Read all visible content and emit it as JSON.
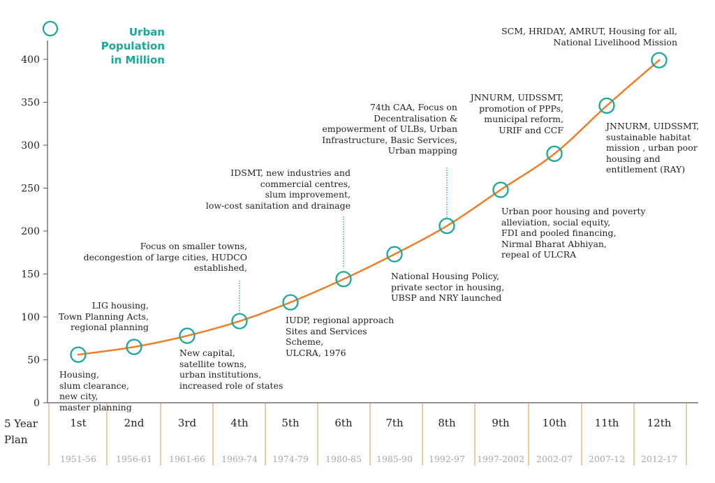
{
  "colors": {
    "accent": "#1aa89a",
    "curve": "#f07b22",
    "separator": "#f2b38a",
    "leader": "#2a9fd6",
    "year_text": "#a8a8a8"
  },
  "y_axis_title": [
    "Urban Population",
    "in Million"
  ],
  "row_title": [
    "5 Year",
    "Plan"
  ],
  "chart_data": {
    "type": "line",
    "title": "",
    "ylabel": "Urban Population in Million",
    "xlabel": "5 Year Plan",
    "ylim": [
      0,
      400
    ],
    "yticks": [
      0,
      50,
      100,
      150,
      200,
      250,
      300,
      350,
      400
    ],
    "categories": [
      "1st",
      "2nd",
      "3rd",
      "4th",
      "5th",
      "6th",
      "7th",
      "8th",
      "9th",
      "10th",
      "11th",
      "12th"
    ],
    "years": [
      "1951-56",
      "1956-61",
      "1961-66",
      "1969-74",
      "1974-79",
      "1980-85",
      "1985-90",
      "1992-97",
      "1997-2002",
      "2002-07",
      "2007-12",
      "2012-17"
    ],
    "values": [
      56,
      65,
      78,
      95,
      117,
      144,
      173,
      206,
      248,
      290,
      346,
      399
    ]
  },
  "annotations": [
    {
      "lines": [
        "Housing,",
        "slum clearance,",
        "new city,",
        "master planning"
      ]
    },
    {
      "lines": [
        "LIG housing,",
        "Town Planning Acts,",
        "regional planning"
      ]
    },
    {
      "lines": [
        "New capital,",
        "satellite towns,",
        "urban institutions,",
        "increased role of states"
      ]
    },
    {
      "lines": [
        "Focus on smaller towns,",
        "decongestion of large cities, HUDCO",
        "established,"
      ]
    },
    {
      "lines": [
        "IUDP, regional approach",
        "Sites and Services",
        "Scheme,",
        "ULCRA, 1976"
      ]
    },
    {
      "lines": [
        "IDSMT, new industries and",
        "commercial centres,",
        "slum improvement,",
        "low-cost sanitation and drainage"
      ]
    },
    {
      "lines": [
        "National Housing Policy,",
        "private sector in housing,",
        "UBSP and NRY launched"
      ]
    },
    {
      "lines": [
        "74th CAA, Focus on",
        "Decentralisation &",
        "empowerment of ULBs, Urban",
        "Infrastructure, Basic Services,",
        "Urban mapping"
      ]
    },
    {
      "lines": [
        "Urban poor housing and poverty",
        "alleviation, social equity,",
        "FDI and pooled financing,",
        "Nirmal Bharat Abhiyan,",
        "repeal of ULCRA"
      ]
    },
    {
      "lines": [
        "JNNURM, UIDSSMT,",
        "promotion of PPPs,",
        "municipal reform,",
        "URIF and CCF"
      ]
    },
    {
      "lines": [
        "JNNURM, UIDSSMT,",
        "sustainable habitat",
        "mission , urban poor",
        "housing and",
        "entitlement (RAY)"
      ]
    },
    {
      "lines": [
        "SCM, HRIDAY, AMRUT, Housing for all,",
        "National Livelihood Mission"
      ]
    }
  ]
}
